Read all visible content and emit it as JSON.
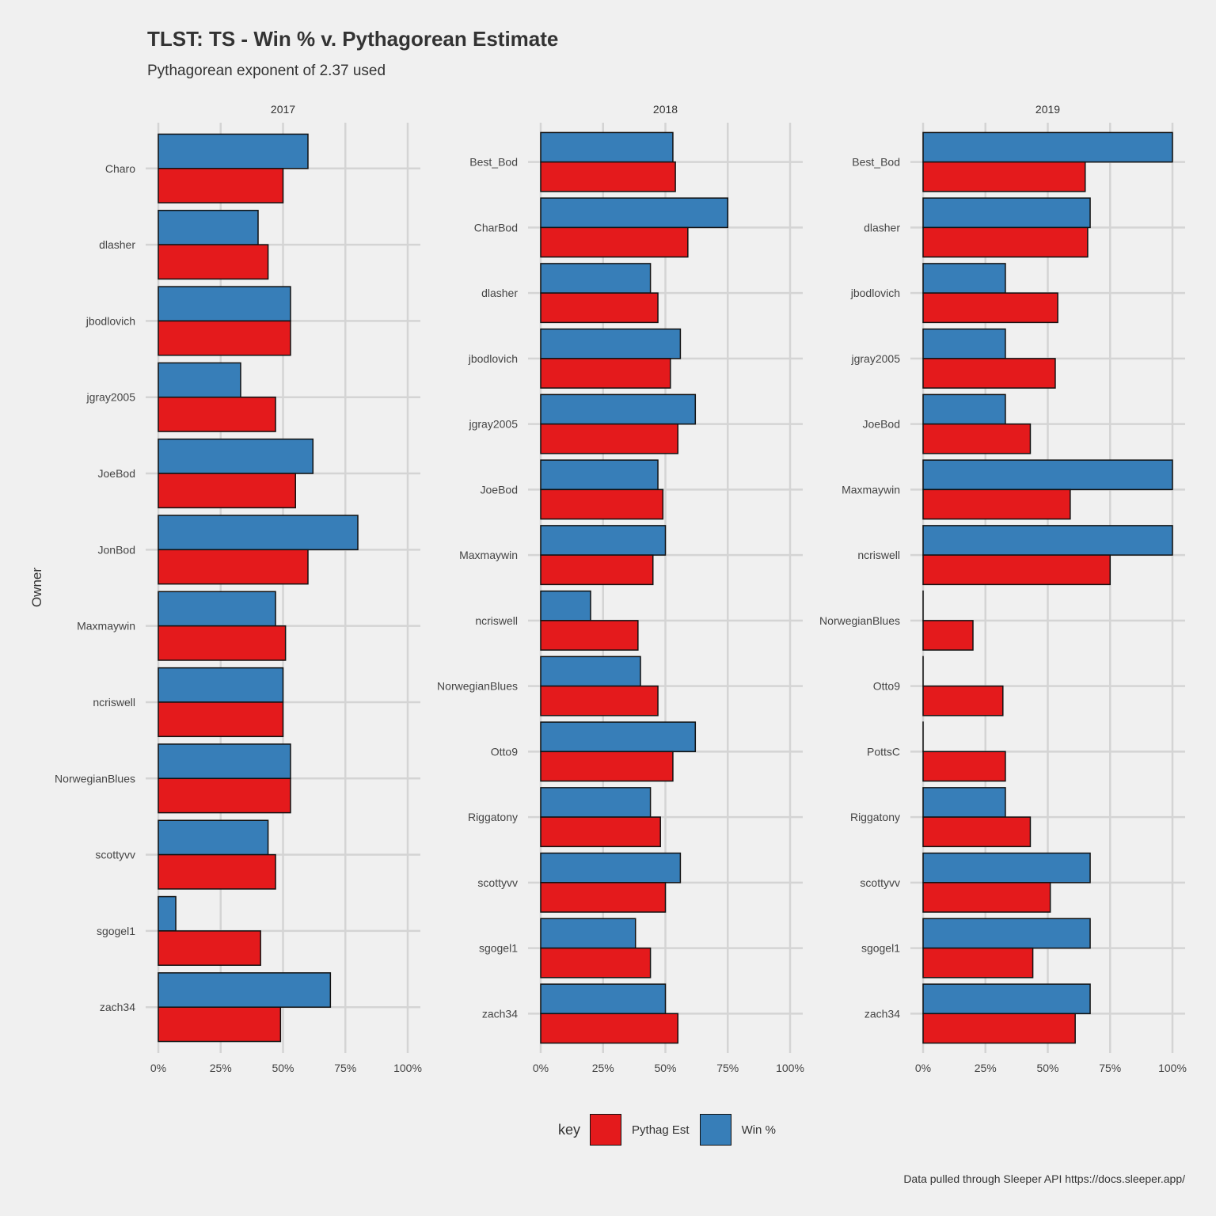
{
  "chart_data": {
    "type": "bar",
    "orientation": "horizontal",
    "title": "TLST: TS - Win % v. Pythagorean Estimate",
    "subtitle": "Pythagorean exponent of 2.37 used",
    "ylabel": "Owner",
    "caption": "Data pulled through Sleeper API https://docs.sleeper.app/",
    "xlim": [
      0,
      1
    ],
    "x_ticks": [
      "0%",
      "25%",
      "50%",
      "75%",
      "100%"
    ],
    "grid": true,
    "legend": {
      "title": "key",
      "position": "bottom",
      "entries": [
        {
          "name": "Pythag Est",
          "color": "#e41a1c"
        },
        {
          "name": "Win %",
          "color": "#377eb8"
        }
      ]
    },
    "colors": {
      "pythag": "#e41a1c",
      "win": "#377eb8"
    },
    "panels": [
      {
        "label": "2017",
        "categories": [
          "zach34",
          "sgogel1",
          "scottyvv",
          "NorwegianBlues",
          "ncriswell",
          "Maxmaywin",
          "JonBod",
          "JoeBod",
          "jgray2005",
          "jbodlovich",
          "dlasher",
          "Charo"
        ],
        "win": [
          0.69,
          0.07,
          0.44,
          0.53,
          0.5,
          0.47,
          0.8,
          0.62,
          0.33,
          0.53,
          0.4,
          0.6
        ],
        "pythag": [
          0.49,
          0.41,
          0.47,
          0.53,
          0.5,
          0.51,
          0.6,
          0.55,
          0.47,
          0.53,
          0.44,
          0.5
        ]
      },
      {
        "label": "2018",
        "categories": [
          "zach34",
          "sgogel1",
          "scottyvv",
          "Riggatony",
          "Otto9",
          "NorwegianBlues",
          "ncriswell",
          "Maxmaywin",
          "JoeBod",
          "jgray2005",
          "jbodlovich",
          "dlasher",
          "CharBod",
          "Best_Bod"
        ],
        "win": [
          0.5,
          0.38,
          0.56,
          0.44,
          0.62,
          0.4,
          0.2,
          0.5,
          0.47,
          0.62,
          0.56,
          0.44,
          0.75,
          0.53
        ],
        "pythag": [
          0.55,
          0.44,
          0.5,
          0.48,
          0.53,
          0.47,
          0.39,
          0.45,
          0.49,
          0.55,
          0.52,
          0.47,
          0.59,
          0.54
        ]
      },
      {
        "label": "2019",
        "categories": [
          "zach34",
          "sgogel1",
          "scottyvv",
          "Riggatony",
          "PottsC",
          "Otto9",
          "NorwegianBlues",
          "ncriswell",
          "Maxmaywin",
          "JoeBod",
          "jgray2005",
          "jbodlovich",
          "dlasher",
          "Best_Bod"
        ],
        "win": [
          0.67,
          0.67,
          0.67,
          0.33,
          0.0,
          0.0,
          0.0,
          1.0,
          1.0,
          0.33,
          0.33,
          0.33,
          0.67,
          1.0
        ],
        "pythag": [
          0.61,
          0.44,
          0.51,
          0.43,
          0.33,
          0.32,
          0.2,
          0.75,
          0.59,
          0.43,
          0.53,
          0.54,
          0.66,
          0.65
        ]
      }
    ]
  }
}
